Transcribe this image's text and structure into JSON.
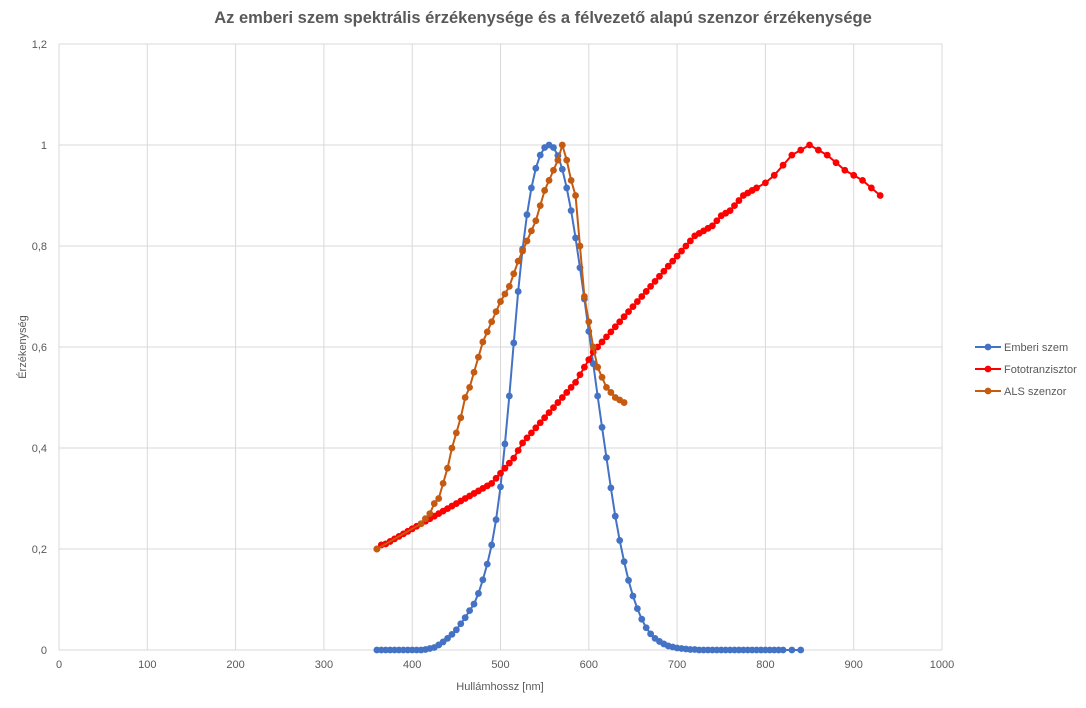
{
  "chart_data": {
    "type": "line",
    "title": "Az emberi szem spektrális érzékenysége és a félvezető alapú szenzor érzékenysége",
    "xlabel": "Hullámhossz [nm]",
    "ylabel": "Érzékenység",
    "xlim": [
      0,
      1000
    ],
    "ylim": [
      0,
      1.2
    ],
    "x_ticks": [
      0,
      100,
      200,
      300,
      400,
      500,
      600,
      700,
      800,
      900,
      1000
    ],
    "y_ticks": [
      0,
      0.2,
      0.4,
      0.6,
      0.8,
      1,
      1.2
    ],
    "y_tick_labels": [
      "0",
      "0,2",
      "0,4",
      "0,6",
      "0,8",
      "1",
      "1,2"
    ],
    "grid": true,
    "legend_position": "right",
    "series": [
      {
        "name": "Emberi szem",
        "color": "#4472c4",
        "x": [
          360,
          365,
          370,
          375,
          380,
          385,
          390,
          395,
          400,
          405,
          410,
          415,
          420,
          425,
          430,
          435,
          440,
          445,
          450,
          455,
          460,
          465,
          470,
          475,
          480,
          485,
          490,
          495,
          500,
          505,
          510,
          515,
          520,
          525,
          530,
          535,
          540,
          545,
          550,
          555,
          560,
          565,
          570,
          575,
          580,
          585,
          590,
          595,
          600,
          605,
          610,
          615,
          620,
          625,
          630,
          635,
          640,
          645,
          650,
          655,
          660,
          665,
          670,
          675,
          680,
          685,
          690,
          695,
          700,
          705,
          710,
          715,
          720,
          725,
          730,
          735,
          740,
          745,
          750,
          755,
          760,
          765,
          770,
          775,
          780,
          785,
          790,
          795,
          800,
          805,
          810,
          815,
          820,
          830,
          840
        ],
        "y": [
          0,
          0,
          0,
          0,
          0,
          0,
          0,
          0,
          0,
          0,
          0,
          0.001,
          0.003,
          0.005,
          0.01,
          0.016,
          0.023,
          0.031,
          0.04,
          0.052,
          0.064,
          0.078,
          0.091,
          0.112,
          0.139,
          0.17,
          0.208,
          0.258,
          0.323,
          0.408,
          0.503,
          0.608,
          0.71,
          0.794,
          0.862,
          0.915,
          0.954,
          0.98,
          0.995,
          1.0,
          0.995,
          0.979,
          0.952,
          0.915,
          0.87,
          0.816,
          0.757,
          0.695,
          0.631,
          0.567,
          0.503,
          0.441,
          0.381,
          0.321,
          0.265,
          0.217,
          0.175,
          0.138,
          0.107,
          0.082,
          0.061,
          0.044,
          0.032,
          0.023,
          0.017,
          0.012,
          0.008,
          0.006,
          0.004,
          0.003,
          0.002,
          0.001,
          0.001,
          0,
          0,
          0,
          0,
          0,
          0,
          0,
          0,
          0,
          0,
          0,
          0,
          0,
          0,
          0,
          0,
          0,
          0,
          0,
          0,
          0,
          0
        ]
      },
      {
        "name": "Fototranzisztor",
        "color": "#ff0000",
        "x": [
          360,
          365,
          370,
          375,
          380,
          385,
          390,
          395,
          400,
          405,
          410,
          415,
          420,
          425,
          430,
          435,
          440,
          445,
          450,
          455,
          460,
          465,
          470,
          475,
          480,
          485,
          490,
          495,
          500,
          505,
          510,
          515,
          520,
          525,
          530,
          535,
          540,
          545,
          550,
          555,
          560,
          565,
          570,
          575,
          580,
          585,
          590,
          595,
          600,
          605,
          610,
          615,
          620,
          625,
          630,
          635,
          640,
          645,
          650,
          655,
          660,
          665,
          670,
          675,
          680,
          685,
          690,
          695,
          700,
          705,
          710,
          715,
          720,
          725,
          730,
          735,
          740,
          745,
          750,
          755,
          760,
          765,
          770,
          775,
          780,
          785,
          790,
          800,
          810,
          820,
          830,
          840,
          850,
          860,
          870,
          880,
          890,
          900,
          910,
          920,
          930
        ],
        "y": [
          0.2,
          0.208,
          0.21,
          0.215,
          0.22,
          0.225,
          0.23,
          0.235,
          0.24,
          0.245,
          0.25,
          0.255,
          0.26,
          0.265,
          0.27,
          0.275,
          0.28,
          0.285,
          0.29,
          0.295,
          0.3,
          0.305,
          0.31,
          0.315,
          0.32,
          0.325,
          0.33,
          0.34,
          0.35,
          0.36,
          0.37,
          0.38,
          0.395,
          0.41,
          0.42,
          0.43,
          0.44,
          0.45,
          0.46,
          0.47,
          0.48,
          0.49,
          0.5,
          0.51,
          0.52,
          0.53,
          0.545,
          0.56,
          0.575,
          0.59,
          0.6,
          0.61,
          0.62,
          0.63,
          0.64,
          0.65,
          0.66,
          0.67,
          0.68,
          0.69,
          0.7,
          0.71,
          0.72,
          0.73,
          0.74,
          0.75,
          0.76,
          0.77,
          0.78,
          0.79,
          0.8,
          0.81,
          0.82,
          0.825,
          0.83,
          0.835,
          0.84,
          0.85,
          0.86,
          0.865,
          0.87,
          0.88,
          0.89,
          0.9,
          0.905,
          0.91,
          0.915,
          0.925,
          0.94,
          0.96,
          0.98,
          0.99,
          1.0,
          0.99,
          0.98,
          0.965,
          0.95,
          0.94,
          0.93,
          0.915,
          0.9
        ]
      },
      {
        "name": "ALS szenzor",
        "color": "#c55a11",
        "x": [
          360,
          410,
          415,
          420,
          425,
          430,
          435,
          440,
          445,
          450,
          455,
          460,
          465,
          470,
          475,
          480,
          485,
          490,
          495,
          500,
          505,
          510,
          515,
          520,
          525,
          530,
          535,
          540,
          545,
          550,
          555,
          560,
          565,
          570,
          575,
          580,
          585,
          590,
          595,
          600,
          605,
          610,
          615,
          620,
          625,
          630,
          635,
          640
        ],
        "y": [
          0.2,
          0.25,
          0.26,
          0.27,
          0.29,
          0.3,
          0.33,
          0.36,
          0.4,
          0.43,
          0.46,
          0.5,
          0.52,
          0.55,
          0.58,
          0.61,
          0.63,
          0.65,
          0.67,
          0.69,
          0.705,
          0.72,
          0.745,
          0.77,
          0.79,
          0.81,
          0.83,
          0.85,
          0.88,
          0.91,
          0.93,
          0.95,
          0.97,
          1.0,
          0.97,
          0.93,
          0.9,
          0.8,
          0.7,
          0.65,
          0.6,
          0.56,
          0.54,
          0.52,
          0.51,
          0.5,
          0.495,
          0.49
        ]
      }
    ]
  }
}
